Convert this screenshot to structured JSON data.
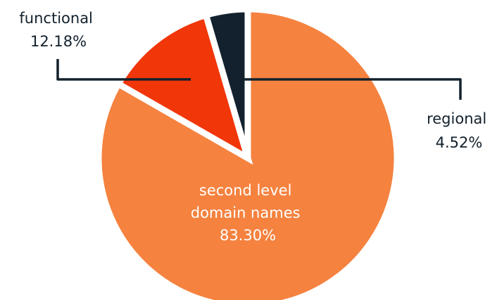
{
  "chart_data": {
    "type": "pie",
    "title": "",
    "slices": [
      {
        "label_lines": [
          "second level",
          "domain names"
        ],
        "value_text": "83.30%",
        "value": 83.3,
        "color": "#f5823f"
      },
      {
        "label_lines": [
          "functional"
        ],
        "value_text": "12.18%",
        "value": 12.18,
        "color": "#f1360a"
      },
      {
        "label_lines": [
          "regional"
        ],
        "value_text": "4.52%",
        "value": 4.52,
        "color": "#12212d"
      }
    ],
    "label_colors": {
      "inside": "#ffffff",
      "outside": "#12212d"
    },
    "leader_line_color": "#12212d",
    "legend": "none"
  }
}
